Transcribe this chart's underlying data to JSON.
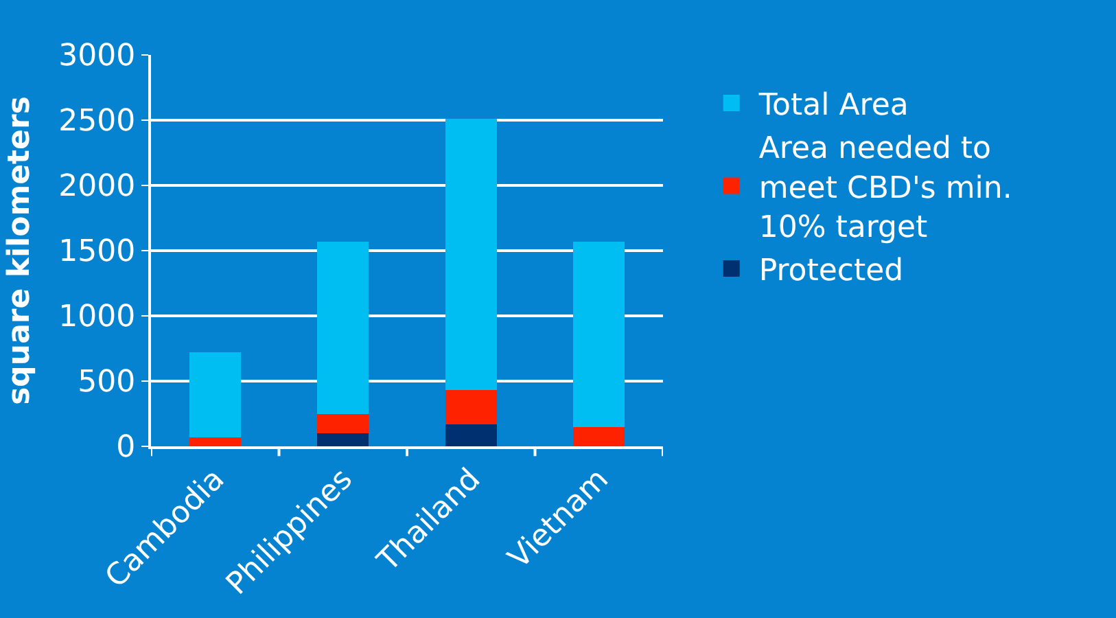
{
  "chart_data": {
    "type": "bar",
    "stacked": true,
    "ylabel": "square kilometers",
    "categories": [
      "Cambodia",
      "Philippines",
      "Thailand",
      "Vietnam"
    ],
    "series": [
      {
        "name": "Protected",
        "color": "#003070",
        "values": [
          0,
          100,
          170,
          0
        ]
      },
      {
        "name": "Area needed to meet CBD's min. 10% target",
        "color": "#ff2200",
        "values": [
          70,
          150,
          260,
          150
        ]
      },
      {
        "name": "Total Area",
        "color": "#00bef2",
        "values": [
          650,
          1320,
          2080,
          1420
        ]
      }
    ],
    "ylim": [
      0,
      3000
    ],
    "yticks": [
      0,
      500,
      1000,
      1500,
      2000,
      2500,
      3000
    ],
    "grid": "y",
    "legend": "right"
  }
}
